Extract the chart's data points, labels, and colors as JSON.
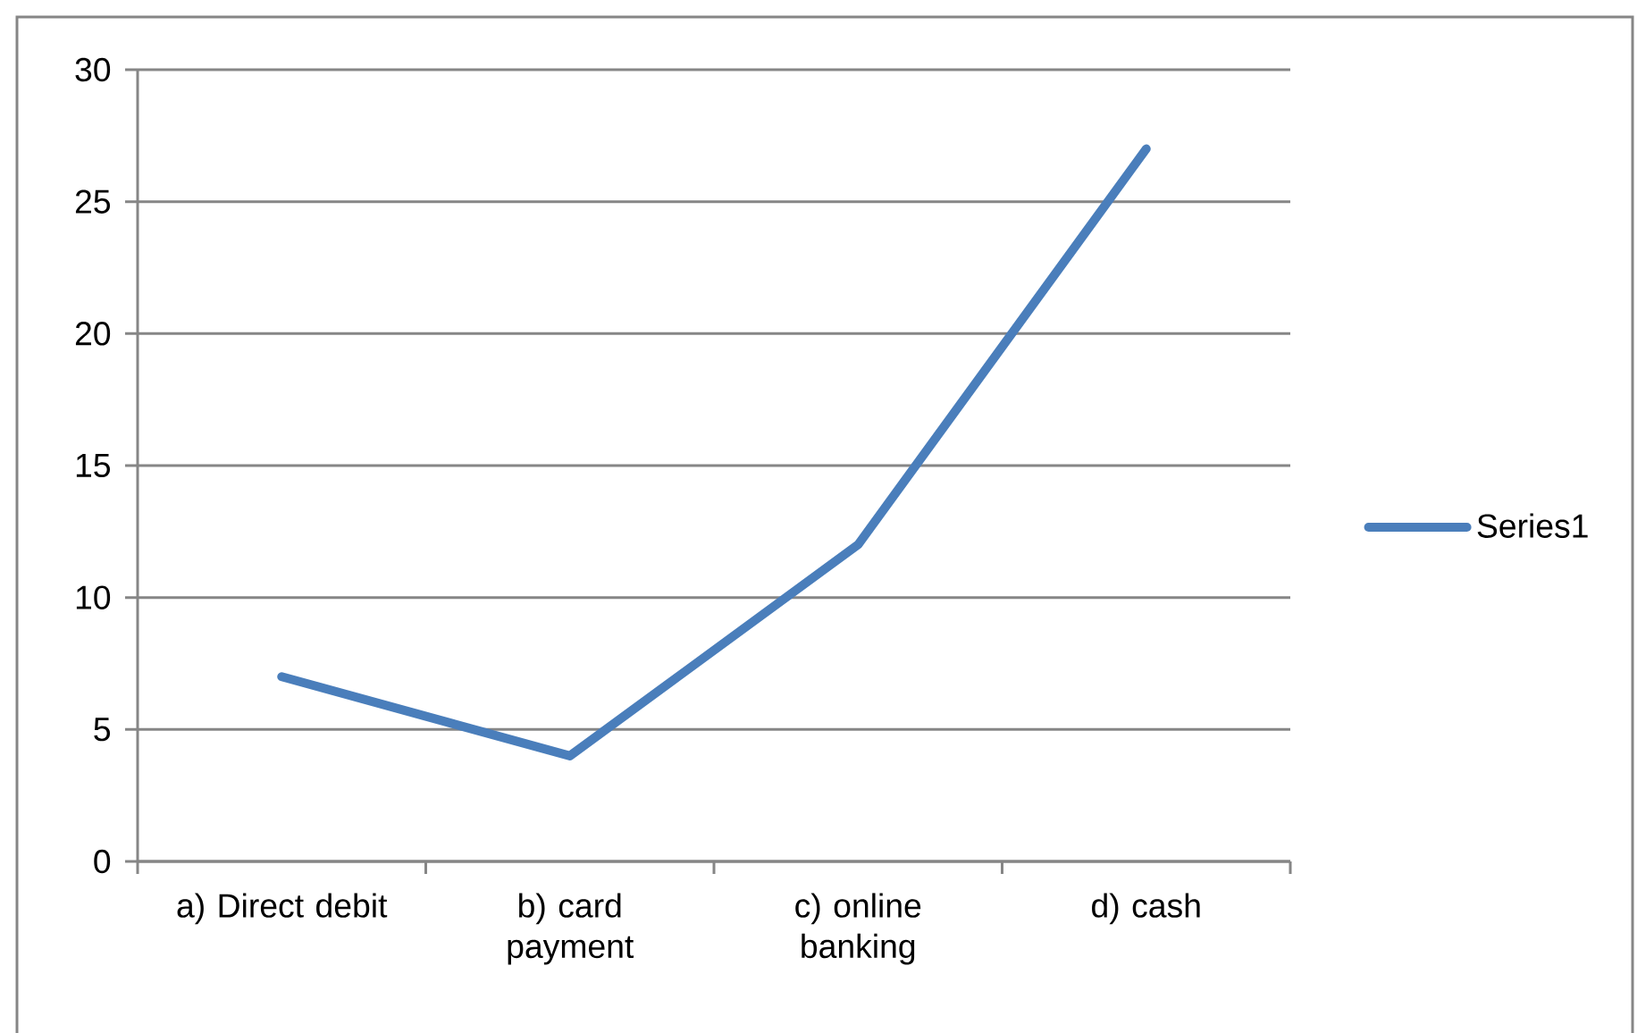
{
  "chart_data": {
    "type": "line",
    "categories": [
      "a) Direct debit",
      "b) card payment",
      "c) online banking",
      "d) cash"
    ],
    "series": [
      {
        "name": "Series1",
        "color": "#4a7ebb",
        "values": [
          7,
          4,
          12,
          27
        ]
      }
    ],
    "ylim": [
      0,
      30
    ],
    "yticks": [
      0,
      5,
      10,
      15,
      20,
      25,
      30
    ],
    "grid": "y",
    "legend": "right",
    "marker": "none",
    "line_style": "solid"
  }
}
